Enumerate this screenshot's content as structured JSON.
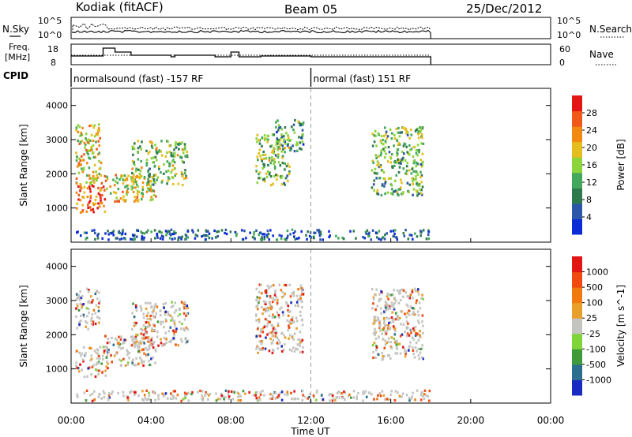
{
  "header": {
    "station": "Kodiak (fitACF)",
    "beam": "Beam 05",
    "date": "25/Dec/2012"
  },
  "noise_panel": {
    "left_label": "N.Sky",
    "right_label": "N.Search",
    "left_ticks": [
      "10^5",
      "10^0"
    ],
    "right_ticks": [
      "10^5",
      "10^0"
    ]
  },
  "freq_panel": {
    "left_label_line1": "Freq.",
    "left_label_line2": "[MHz]",
    "right_label": "Nave",
    "left_ticks": [
      "18",
      "8"
    ],
    "right_ticks": [
      "60",
      "0"
    ]
  },
  "cpid": {
    "label": "CPID",
    "segments": [
      {
        "start_hour": 0.0,
        "text": "normalsound (fast) -157 RF"
      },
      {
        "start_hour": 12.0,
        "text": "normal (fast) 151 RF"
      }
    ]
  },
  "chart_data": [
    {
      "type": "heatmap",
      "title": "",
      "ylabel": "Slant Range [km]",
      "xlim_hours": [
        0,
        24
      ],
      "ylim": [
        0,
        4500
      ],
      "yticks": [
        "1000",
        "2000",
        "3000",
        "4000"
      ],
      "colorbar": {
        "label": "Power [dB]",
        "ticks": [
          "28",
          "24",
          "20",
          "16",
          "12",
          "8",
          "4"
        ],
        "colors": [
          "#0a2bd6",
          "#2c56a8",
          "#2f7a4c",
          "#44a85c",
          "#8cd43b",
          "#e4be1e",
          "#f08a13",
          "#f0591a",
          "#e31616"
        ]
      },
      "regions": [
        {
          "t": [
            0.2,
            1.7
          ],
          "r": [
            900,
            1700
          ],
          "level": 0.85
        },
        {
          "t": [
            0.2,
            1.5
          ],
          "r": [
            1700,
            3500
          ],
          "level": 0.6
        },
        {
          "t": [
            1.6,
            4.2
          ],
          "r": [
            1200,
            2000
          ],
          "level": 0.6
        },
        {
          "t": [
            3.0,
            5.8
          ],
          "r": [
            1700,
            3000
          ],
          "level": 0.45
        },
        {
          "t": [
            9.2,
            10.9
          ],
          "r": [
            1700,
            3200
          ],
          "level": 0.45
        },
        {
          "t": [
            10.2,
            11.6
          ],
          "r": [
            2700,
            3600
          ],
          "level": 0.3
        },
        {
          "t": [
            15.0,
            17.6
          ],
          "r": [
            1400,
            3400
          ],
          "level": 0.4
        },
        {
          "t": [
            0.2,
            17.9
          ],
          "r": [
            100,
            400
          ],
          "level": 0.15
        }
      ]
    },
    {
      "type": "heatmap",
      "title": "",
      "ylabel": "Slant Range [km]",
      "xlim_hours": [
        0,
        24
      ],
      "ylim": [
        0,
        4500
      ],
      "yticks": [
        "1000",
        "2000",
        "3000",
        "4000"
      ],
      "colorbar": {
        "label": "Velocity [m s^-1]",
        "ticks": [
          "1000",
          "500",
          "100",
          "25",
          "-25",
          "-100",
          "-500",
          "-1000"
        ],
        "colors": [
          "#1a2bc2",
          "#2b6e8e",
          "#3f9a3c",
          "#7fd43a",
          "#c4c4c0",
          "#e8a02a",
          "#f07a10",
          "#f04a10",
          "#e31616"
        ]
      },
      "regions": [
        {
          "t": [
            0.2,
            1.8
          ],
          "r": [
            800,
            1700
          ],
          "level": 0.5
        },
        {
          "t": [
            0.2,
            1.4
          ],
          "r": [
            2200,
            3400
          ],
          "level": 0.6
        },
        {
          "t": [
            1.6,
            4.2
          ],
          "r": [
            1100,
            2000
          ],
          "level": 0.5
        },
        {
          "t": [
            3.0,
            5.8
          ],
          "r": [
            1700,
            3000
          ],
          "level": 0.5
        },
        {
          "t": [
            9.2,
            11.6
          ],
          "r": [
            1500,
            3500
          ],
          "level": 0.45
        },
        {
          "t": [
            15.0,
            17.6
          ],
          "r": [
            1300,
            3400
          ],
          "level": 0.55
        },
        {
          "t": [
            0.2,
            17.9
          ],
          "r": [
            100,
            400
          ],
          "level": 0.6
        }
      ]
    }
  ],
  "xaxis": {
    "label": "Time UT",
    "ticks": [
      "00:00",
      "04:00",
      "08:00",
      "12:00",
      "16:00",
      "20:00",
      "00:00"
    ]
  }
}
